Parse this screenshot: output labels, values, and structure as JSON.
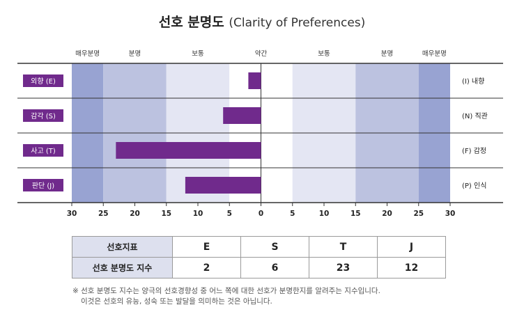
{
  "title_ko": "선호 분명도",
  "title_en": "(Clarity of Preferences)",
  "chart_data": {
    "type": "bar",
    "orientation": "horizontal-diverging",
    "xlim": [
      -30,
      30
    ],
    "x_ticks": [
      "30",
      "25",
      "20",
      "15",
      "10",
      "5",
      "0",
      "5",
      "10",
      "15",
      "20",
      "25",
      "30"
    ],
    "zones": [
      {
        "label": "매우분명",
        "from": -30,
        "to": -25,
        "color": "#98a3d2"
      },
      {
        "label": "분명",
        "from": -25,
        "to": -15,
        "color": "#bcc2e0"
      },
      {
        "label": "보통",
        "from": -15,
        "to": -5,
        "color": "#e4e6f3"
      },
      {
        "label": "약간",
        "from": -5,
        "to": 5,
        "color": "#ffffff"
      },
      {
        "label": "보통",
        "from": 5,
        "to": 15,
        "color": "#e4e6f3"
      },
      {
        "label": "분명",
        "from": 15,
        "to": 25,
        "color": "#bcc2e0"
      },
      {
        "label": "매우분명",
        "from": 25,
        "to": 30,
        "color": "#98a3d2"
      }
    ],
    "zone_header": [
      "매우분명",
      "분명",
      "보통",
      "약간",
      "보통",
      "분명",
      "매우분명"
    ],
    "rows": [
      {
        "left_label": "외향 (E)",
        "right_label": "(I) 내향",
        "value": -2
      },
      {
        "left_label": "감각 (S)",
        "right_label": "(N) 직관",
        "value": -6
      },
      {
        "left_label": "사고 (T)",
        "right_label": "(F) 감정",
        "value": -23
      },
      {
        "left_label": "판단 (J)",
        "right_label": "(P) 인식",
        "value": -12
      }
    ],
    "bar_color": "#702a8c",
    "label_box_color": "#702a8c"
  },
  "score_table": {
    "row1_header": "선호지표",
    "row2_header": "선호 분명도 지수",
    "letters": [
      "E",
      "S",
      "T",
      "J"
    ],
    "scores": [
      "2",
      "6",
      "23",
      "12"
    ]
  },
  "note_line1": "※ 선호 분명도 지수는 양극의 선호경향성 중 어느 쪽에 대한 선호가 분명한지를 알려주는 지수입니다.",
  "note_line2": "이것은 선호의 유능, 성숙 또는 발달을 의미하는 것은 아닙니다."
}
